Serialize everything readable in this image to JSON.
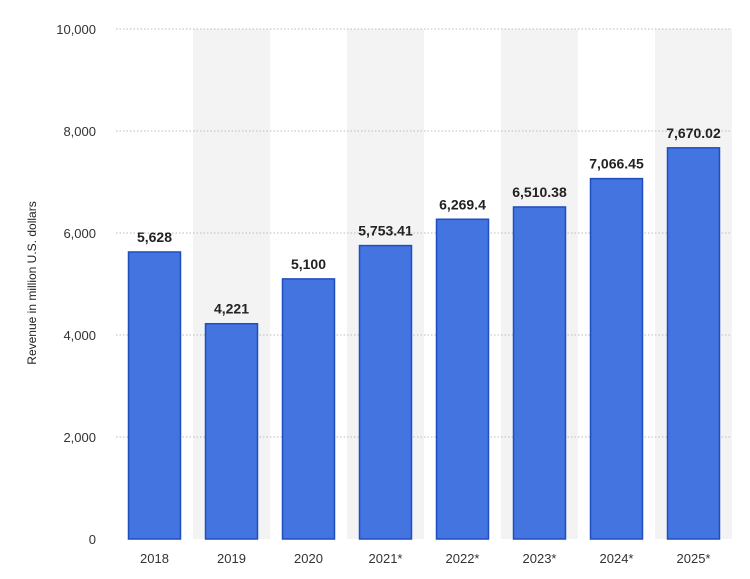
{
  "chart_data": {
    "type": "bar",
    "categories": [
      "2018",
      "2019",
      "2020",
      "2021*",
      "2022*",
      "2023*",
      "2024*",
      "2025*"
    ],
    "values": [
      5628,
      4221,
      5100,
      5753.41,
      6269.4,
      6510.38,
      7066.45,
      7670.02
    ],
    "value_labels": [
      "5,628",
      "4,221",
      "5,100",
      "5,753.41",
      "6,269.4",
      "6,510.38",
      "7,066.45",
      "7,670.02"
    ],
    "title": "",
    "xlabel": "",
    "ylabel": "Revenue in million U.S. dollars",
    "ylim": [
      0,
      10000
    ],
    "yticks": [
      0,
      2000,
      4000,
      6000,
      8000,
      10000
    ],
    "ytick_labels": [
      "0",
      "2,000",
      "4,000",
      "6,000",
      "8,000",
      "10,000"
    ],
    "grid": true,
    "colors": {
      "bar_fill": "#4374e0",
      "bar_stroke": "#1f4fbf",
      "band": "#f3f3f3",
      "grid": "#bbbbbb"
    }
  }
}
